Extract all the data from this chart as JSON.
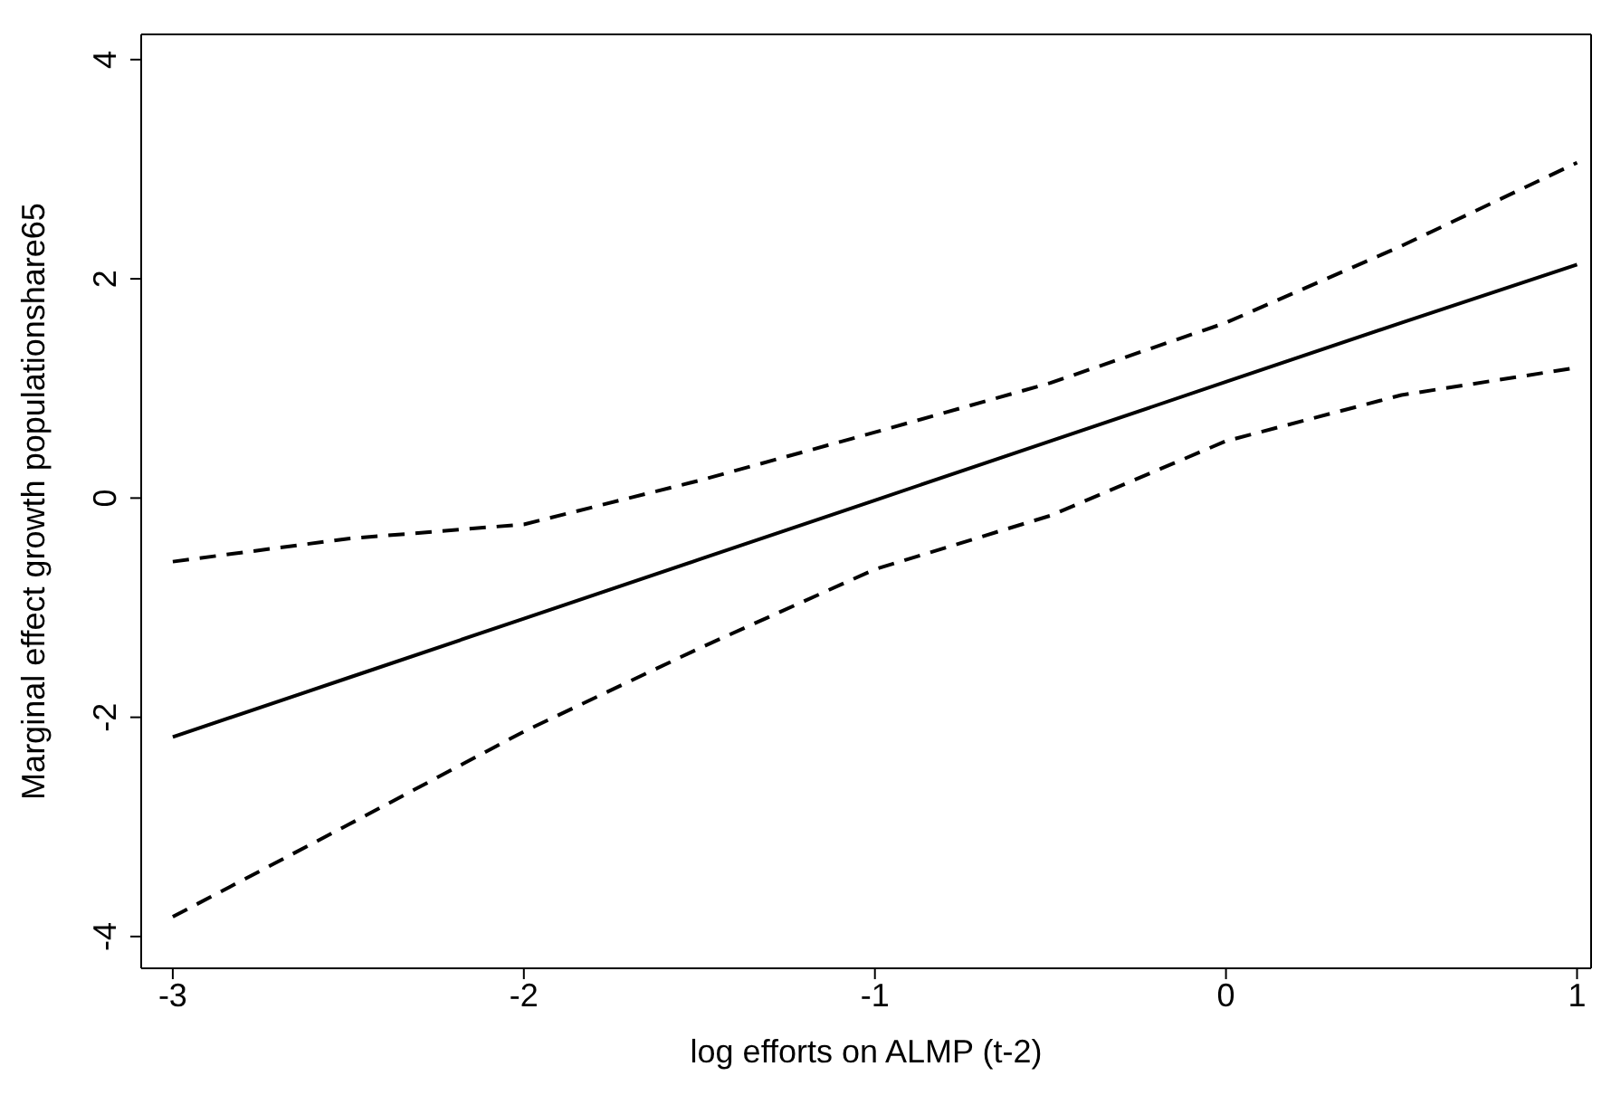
{
  "chart_data": {
    "type": "line",
    "xlabel": "log efforts on ALMP (t-2)",
    "ylabel": "Marginal effect growth populationshare65",
    "x": [
      -3,
      -2.5,
      -2,
      -1.5,
      -1,
      -0.5,
      0,
      0.5,
      1
    ],
    "series": [
      {
        "color": "#000000",
        "line_style": "solid",
        "values": [
          -2.18,
          -1.64,
          -1.1,
          -0.56,
          -0.02,
          0.52,
          1.06,
          1.6,
          2.13
        ]
      },
      {
        "color": "#000000",
        "line_style": "dashed",
        "values": [
          -0.58,
          -0.37,
          -0.24,
          0.16,
          0.6,
          1.05,
          1.6,
          2.3,
          3.06
        ]
      },
      {
        "color": "#000000",
        "line_style": "dashed",
        "values": [
          -3.82,
          -2.98,
          -2.13,
          -1.37,
          -0.65,
          -0.16,
          0.52,
          0.94,
          1.19
        ]
      }
    ],
    "xlim": [
      -3.09,
      1.04
    ],
    "xticks": [
      -3,
      -2,
      -1,
      0,
      1
    ],
    "ylim": [
      -4.29,
      4.23
    ],
    "yticks": [
      -4,
      -2,
      0,
      2,
      4
    ],
    "grid": false,
    "marker": "none"
  }
}
